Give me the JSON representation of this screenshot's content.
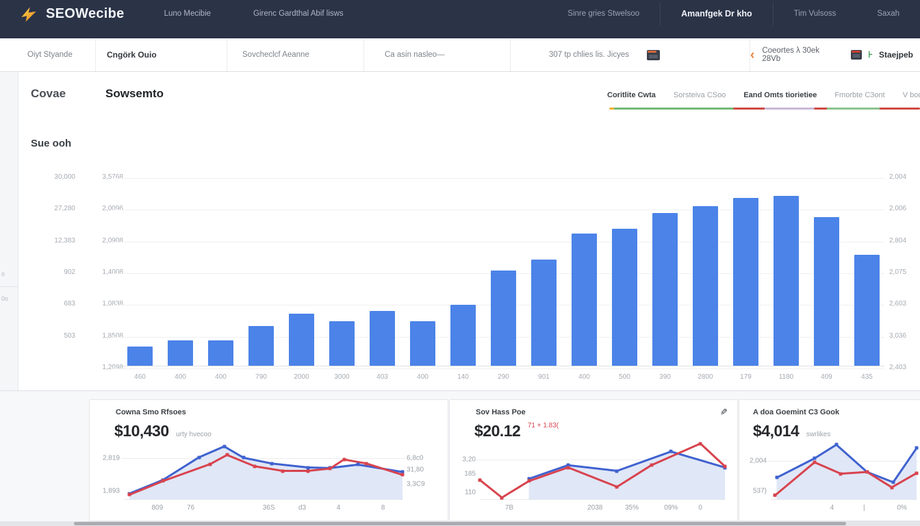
{
  "topnav": {
    "brand": "SEOWecibe",
    "items_left": [
      "Luno Mecibie",
      "Girenc Gardthal Abif lisws"
    ],
    "items_right": [
      "Sinre gries Stwelsoo",
      "Amanfgek Dr kho",
      "Tim Vulsoss",
      "Saxah"
    ]
  },
  "toolbar": {
    "items": [
      "Oiyt Styande",
      "Cngörk Ouio",
      "Sovcheclcf Aeanne",
      "Ca asin nasleo—",
      "307 tp chlies lis. Jicyes"
    ],
    "back_chevron": "‹",
    "date_range": "Coeortes λ 30ek 28Vb",
    "action_glyph": "⊦",
    "action": "Staejpeb"
  },
  "left_rail": {
    "ticks": [
      "o",
      "0o"
    ]
  },
  "main": {
    "tabs": [
      "Covae",
      "Sowsemto"
    ],
    "legend": [
      {
        "label": "Coritlite Cwta",
        "emphasis": true
      },
      {
        "label": "Sorsteiva CSoo",
        "emphasis": false
      },
      {
        "label": "Eand Omts tiorietiee",
        "emphasis": true
      },
      {
        "label": "Fmorbte C3ont",
        "emphasis": false
      },
      {
        "label": "V boonr",
        "emphasis": false
      }
    ],
    "section_title": "Sue ooh"
  },
  "colors": {
    "topnav_bg": "#2b3347",
    "bar_blue": "#4b83e8",
    "line_blue": "#3f62cf",
    "line_red": "#d8434e",
    "area_fill": "#dde4f6",
    "accent_orange": "#e8813a",
    "accent_green": "#3d9f52"
  },
  "chart_data": [
    {
      "id": "sessions-bars",
      "type": "bar",
      "title": "Sue ooh",
      "categories": [
        "460",
        "400",
        "400",
        "790",
        "2000",
        "3000",
        "403",
        "400",
        "140",
        "290",
        "901",
        "400",
        "500",
        "390",
        "2800",
        "179",
        "1180",
        "409",
        "435"
      ],
      "values": [
        28,
        37,
        37,
        58,
        76,
        65,
        80,
        65,
        89,
        139,
        155,
        193,
        200,
        223,
        233,
        245,
        248,
        217,
        162
      ],
      "ylim": [
        0,
        285
      ],
      "bar_color": "#4b83e8",
      "grid": true,
      "y_axis_left_outer": [
        "30,000",
        "27,280",
        "12,383",
        "902",
        "683",
        "503"
      ],
      "y_axis_left_inner": [
        "3,5768",
        "2,0096",
        "2,0908",
        "1,4008",
        "1,0838",
        "1,8508",
        "1,2098"
      ],
      "y_axis_right": [
        "2,004",
        "2,006",
        "2,804",
        "2,075",
        "2,603",
        "3,036",
        "2,403"
      ]
    },
    {
      "id": "card-1",
      "type": "line",
      "title": "Cowna Smo Rfsoes",
      "value": "$10,430",
      "suffix": "urty hvecoo",
      "badge": "",
      "grid_y": [
        28
      ],
      "left_labels": [
        {
          "t": "2,819",
          "y": 28
        },
        {
          "t": "1,893",
          "y": 86
        }
      ],
      "right_labels": [
        {
          "t": "6,8c0",
          "y": 28
        },
        {
          "t": "31,80",
          "y": 48
        },
        {
          "t": "3,3C9",
          "y": 74
        }
      ],
      "x_labels": [
        {
          "t": "809",
          "x": 12
        },
        {
          "t": "76",
          "x": 24
        },
        {
          "t": "36S",
          "x": 52
        },
        {
          "t": "d3",
          "x": 64
        },
        {
          "t": "4",
          "x": 77
        },
        {
          "t": "8",
          "x": 93
        }
      ],
      "series": [
        {
          "name": "primary",
          "color": "#3f62cf",
          "area": true,
          "points": [
            [
              2,
              90
            ],
            [
              14,
              66
            ],
            [
              27,
              26
            ],
            [
              36,
              7
            ],
            [
              43,
              27
            ],
            [
              53,
              37
            ],
            [
              66,
              44
            ],
            [
              74,
              45
            ],
            [
              84,
              39
            ],
            [
              100,
              52
            ]
          ]
        },
        {
          "name": "secondary",
          "color": "#d8434e",
          "area": false,
          "points": [
            [
              2,
              92
            ],
            [
              14,
              68
            ],
            [
              31,
              38
            ],
            [
              37,
              22
            ],
            [
              47,
              42
            ],
            [
              57,
              50
            ],
            [
              66,
              50
            ],
            [
              74,
              46
            ],
            [
              79,
              30
            ],
            [
              87,
              37
            ],
            [
              100,
              57
            ]
          ]
        }
      ]
    },
    {
      "id": "card-2",
      "type": "line",
      "title": "Sov Hass Poe",
      "value": "$20.12",
      "suffix": "",
      "badge": "71 + 1.83(",
      "grid_y": [
        30
      ],
      "left_labels": [
        {
          "t": "3,20",
          "y": 30
        },
        {
          "t": "185",
          "y": 56
        },
        {
          "t": "110",
          "y": 88
        }
      ],
      "right_labels": [],
      "x_labels": [
        {
          "t": "7B",
          "x": 12
        },
        {
          "t": "2038",
          "x": 47
        },
        {
          "t": "35%",
          "x": 62
        },
        {
          "t": "09%",
          "x": 78
        },
        {
          "t": "0",
          "x": 90
        }
      ],
      "series": [
        {
          "name": "primary",
          "color": "#3f62cf",
          "area": true,
          "points": [
            [
              20,
              64
            ],
            [
              36,
              40
            ],
            [
              56,
              50
            ],
            [
              78,
              16
            ],
            [
              100,
              44
            ]
          ]
        },
        {
          "name": "secondary",
          "color": "#d8434e",
          "area": false,
          "points": [
            [
              0,
              66
            ],
            [
              9,
              97
            ],
            [
              20,
              68
            ],
            [
              36,
              44
            ],
            [
              56,
              78
            ],
            [
              70,
              40
            ],
            [
              90,
              2
            ],
            [
              100,
              42
            ]
          ]
        }
      ]
    },
    {
      "id": "card-3",
      "type": "line",
      "title": "A doa Goemint C3 Gook",
      "value": "$4,014",
      "suffix": "swrlikes",
      "badge": "",
      "grid_y": [
        32
      ],
      "left_labels": [
        {
          "t": "2,004",
          "y": 32
        },
        {
          "t": "537)",
          "y": 86
        }
      ],
      "right_labels": [],
      "x_labels": [
        {
          "t": "4",
          "x": 42
        },
        {
          "t": "|",
          "x": 64
        },
        {
          "t": "0%",
          "x": 90
        }
      ],
      "series": [
        {
          "name": "primary",
          "color": "#3f62cf",
          "area": true,
          "points": [
            [
              4,
              62
            ],
            [
              30,
              28
            ],
            [
              45,
              4
            ],
            [
              66,
              52
            ],
            [
              84,
              70
            ],
            [
              100,
              10
            ]
          ]
        },
        {
          "name": "secondary",
          "color": "#d8434e",
          "area": false,
          "points": [
            [
              3,
              93
            ],
            [
              30,
              35
            ],
            [
              48,
              55
            ],
            [
              66,
              52
            ],
            [
              83,
              79
            ],
            [
              100,
              54
            ]
          ]
        }
      ]
    }
  ]
}
